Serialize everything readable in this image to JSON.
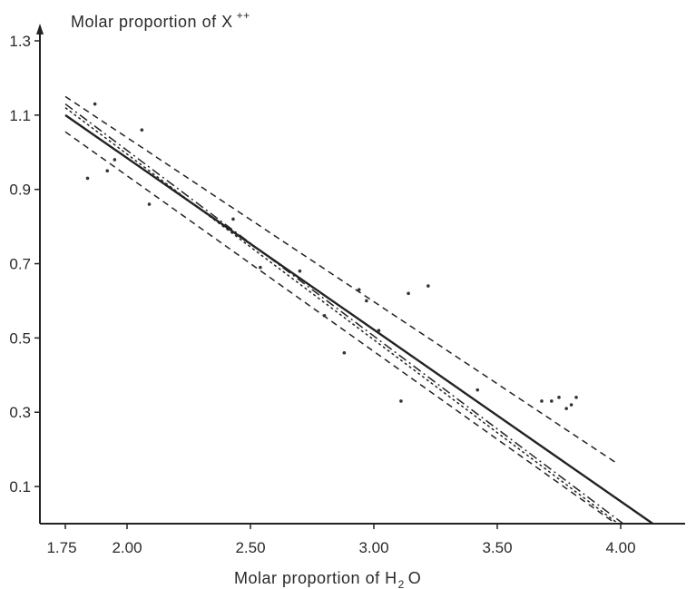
{
  "chart_data": {
    "type": "scatter",
    "title": "",
    "ylabel": {
      "main": "Molar proportion of X",
      "superscript": "++"
    },
    "xlabel": {
      "before": "Molar proportion of H",
      "subscript": "2",
      "after": "O"
    },
    "xlim": [
      1.75,
      4.25
    ],
    "ylim": [
      0.0,
      1.3
    ],
    "x_ticks": [
      {
        "value": 1.75,
        "label": "1.75"
      },
      {
        "value": 2.0,
        "label": "2.00"
      },
      {
        "value": 2.5,
        "label": "2.50"
      },
      {
        "value": 3.0,
        "label": "3.00"
      },
      {
        "value": 3.5,
        "label": "3.50"
      },
      {
        "value": 4.0,
        "label": "4.00"
      }
    ],
    "y_ticks": [
      {
        "value": 0.1,
        "label": "0.1"
      },
      {
        "value": 0.3,
        "label": "0.3"
      },
      {
        "value": 0.5,
        "label": "0.5"
      },
      {
        "value": 0.7,
        "label": "0.7"
      },
      {
        "value": 0.9,
        "label": "0.9"
      },
      {
        "value": 1.1,
        "label": "1.1"
      },
      {
        "value": 1.3,
        "label": "1.3"
      }
    ],
    "grid": false,
    "points": [
      {
        "x": 1.84,
        "y": 0.93
      },
      {
        "x": 1.87,
        "y": 1.13
      },
      {
        "x": 1.92,
        "y": 0.95
      },
      {
        "x": 1.95,
        "y": 0.98
      },
      {
        "x": 2.06,
        "y": 1.06
      },
      {
        "x": 2.09,
        "y": 0.86
      },
      {
        "x": 2.43,
        "y": 0.82
      },
      {
        "x": 2.54,
        "y": 0.69
      },
      {
        "x": 2.7,
        "y": 0.68
      },
      {
        "x": 2.8,
        "y": 0.56
      },
      {
        "x": 2.88,
        "y": 0.46
      },
      {
        "x": 2.94,
        "y": 0.63
      },
      {
        "x": 2.97,
        "y": 0.6
      },
      {
        "x": 3.02,
        "y": 0.52
      },
      {
        "x": 3.11,
        "y": 0.33
      },
      {
        "x": 3.14,
        "y": 0.62
      },
      {
        "x": 3.22,
        "y": 0.64
      },
      {
        "x": 3.42,
        "y": 0.36
      },
      {
        "x": 3.68,
        "y": 0.33
      },
      {
        "x": 3.72,
        "y": 0.33
      },
      {
        "x": 3.75,
        "y": 0.34
      },
      {
        "x": 3.78,
        "y": 0.31
      },
      {
        "x": 3.8,
        "y": 0.32
      },
      {
        "x": 3.82,
        "y": 0.34
      }
    ],
    "lines": [
      {
        "style": "solid",
        "x": [
          1.75,
          4.13
        ],
        "y": [
          1.1,
          0.0
        ]
      },
      {
        "style": "dash-dot",
        "x": [
          1.75,
          4.01
        ],
        "y": [
          1.13,
          0.0
        ]
      },
      {
        "style": "dotted",
        "x": [
          1.75,
          3.99
        ],
        "y": [
          1.12,
          0.0
        ]
      },
      {
        "style": "dashed",
        "x": [
          1.75,
          3.98
        ],
        "y": [
          1.055,
          0.0
        ]
      },
      {
        "style": "dashed",
        "x": [
          1.75,
          3.99
        ],
        "y": [
          1.15,
          0.16
        ]
      }
    ]
  }
}
